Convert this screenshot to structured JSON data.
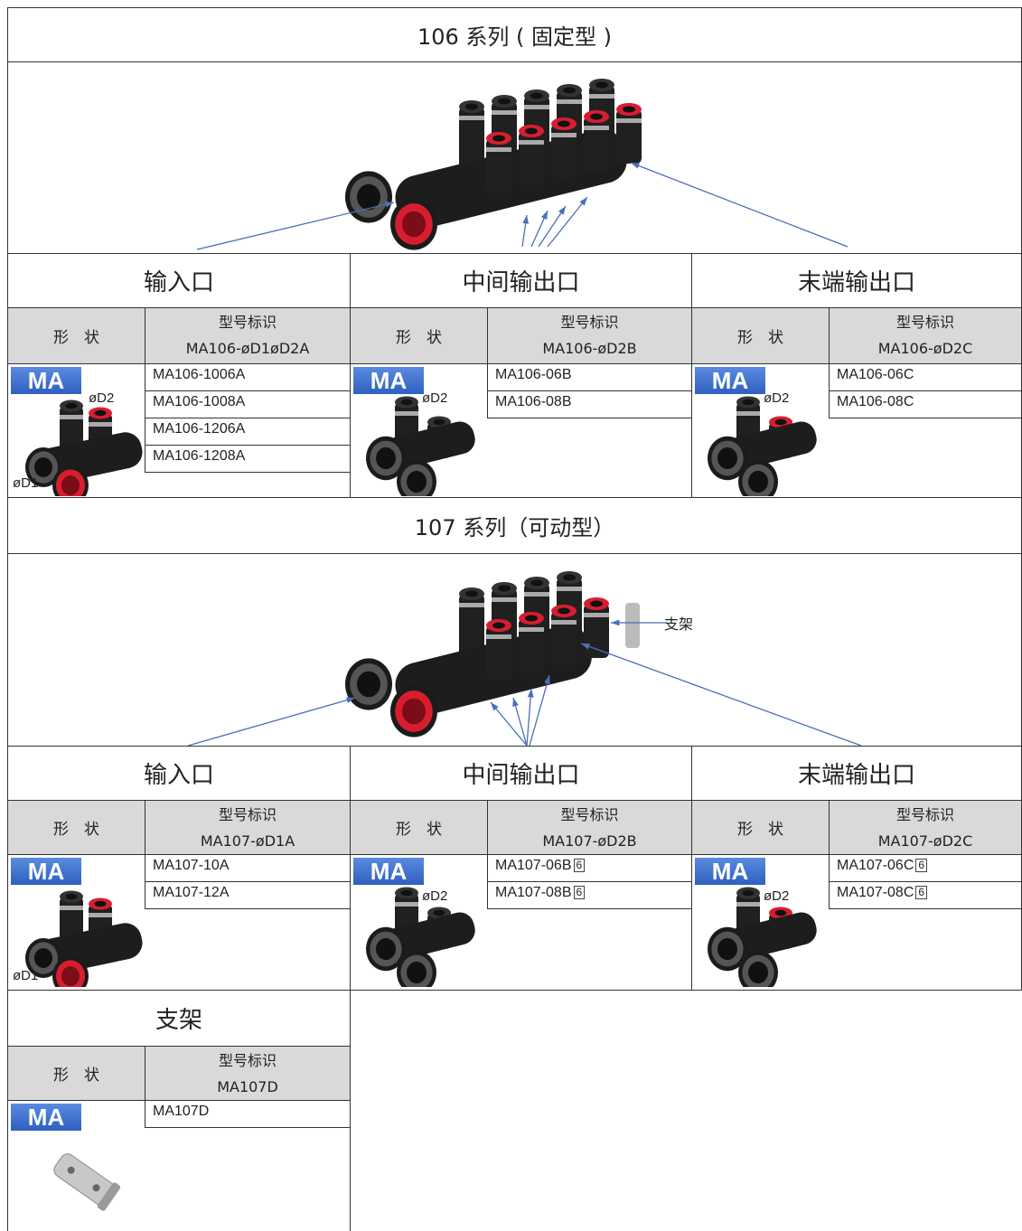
{
  "series": [
    {
      "title": "106 系列 ( 固定型 )",
      "parts": [
        {
          "heading": "输入口",
          "shape_header": "形　状",
          "code_header": "型号标识",
          "pattern": "MA106-øD1øD2A",
          "badge": "MA",
          "dims": [
            "øD2",
            "øD1"
          ],
          "models": [
            {
              "code": "MA106-1006A"
            },
            {
              "code": "MA106-1008A"
            },
            {
              "code": "MA106-1206A"
            },
            {
              "code": "MA106-1208A"
            }
          ]
        },
        {
          "heading": "中间输出口",
          "shape_header": "形　状",
          "code_header": "型号标识",
          "pattern": "MA106-øD2B",
          "badge": "MA",
          "dims": [
            "øD2"
          ],
          "models": [
            {
              "code": "MA106-06B"
            },
            {
              "code": "MA106-08B"
            }
          ]
        },
        {
          "heading": "末端输出口",
          "shape_header": "形　状",
          "code_header": "型号标识",
          "pattern": "MA106-øD2C",
          "badge": "MA",
          "dims": [
            "øD2"
          ],
          "models": [
            {
              "code": "MA106-06C"
            },
            {
              "code": "MA106-08C"
            }
          ]
        }
      ]
    },
    {
      "title": "107 系列（可动型）",
      "callout": "支架",
      "parts": [
        {
          "heading": "输入口",
          "shape_header": "形　状",
          "code_header": "型号标识",
          "pattern": "MA107-øD1A",
          "badge": "MA",
          "dims": [
            "øD1"
          ],
          "models": [
            {
              "code": "MA107-10A"
            },
            {
              "code": "MA107-12A"
            }
          ]
        },
        {
          "heading": "中间输出口",
          "shape_header": "形　状",
          "code_header": "型号标识",
          "pattern": "MA107-øD2B",
          "badge": "MA",
          "dims": [
            "øD2"
          ],
          "models": [
            {
              "code": "MA107-06B",
              "note": "6"
            },
            {
              "code": "MA107-08B",
              "note": "6"
            }
          ]
        },
        {
          "heading": "末端输出口",
          "shape_header": "形　状",
          "code_header": "型号标识",
          "pattern": "MA107-øD2C",
          "badge": "MA",
          "dims": [
            "øD2"
          ],
          "models": [
            {
              "code": "MA107-06C",
              "note": "6"
            },
            {
              "code": "MA107-08C",
              "note": "6"
            }
          ]
        }
      ]
    }
  ],
  "bracket": {
    "heading": "支架",
    "shape_header": "形　状",
    "code_header": "型号标识",
    "pattern": "MA107D",
    "badge": "MA",
    "models": [
      {
        "code": "MA107D"
      }
    ]
  }
}
